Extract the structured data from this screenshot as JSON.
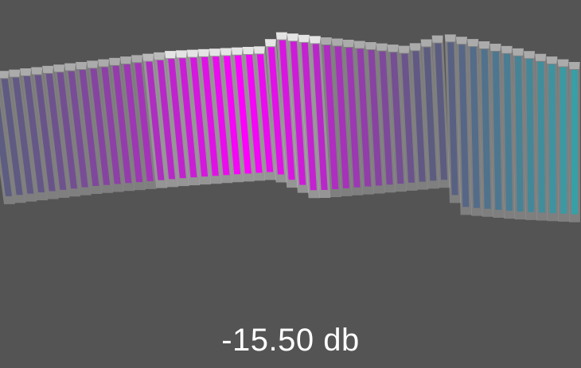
{
  "readout": {
    "level_text": "-15.50 db"
  },
  "meter": {
    "bar_count": 53,
    "colors": {
      "background": "#545454",
      "outline": "#d8d8d8",
      "cool": "#35a2a8",
      "mid": "#5c5c80",
      "hot": "#ff00ff",
      "highlight": "#ffffff"
    }
  }
}
